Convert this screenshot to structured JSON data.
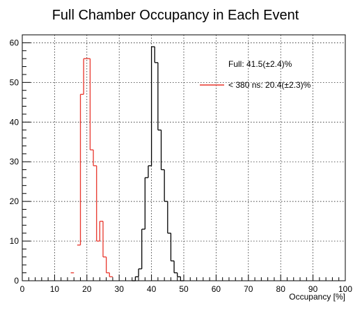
{
  "chart_data": {
    "type": "histogram",
    "title": "Full Chamber Occupancy in Each Event",
    "xlabel": "Occupancy [%]",
    "ylabel": "",
    "xlim": [
      0,
      100
    ],
    "ylim": [
      0,
      62
    ],
    "x_ticks": [
      "0",
      "10",
      "20",
      "30",
      "40",
      "50",
      "60",
      "70",
      "80",
      "90",
      "100"
    ],
    "y_ticks": [
      "0",
      "10",
      "20",
      "30",
      "40",
      "50",
      "60"
    ],
    "grid": true,
    "legend_position": "top-right",
    "series": [
      {
        "name": "Full: 41.5(±2.4)%",
        "color": "#000000",
        "legend_marker": false,
        "bin_width": 1,
        "bins": [
          {
            "x": 34,
            "y": 0
          },
          {
            "x": 35,
            "y": 1
          },
          {
            "x": 36,
            "y": 3
          },
          {
            "x": 37,
            "y": 13
          },
          {
            "x": 38,
            "y": 26
          },
          {
            "x": 39,
            "y": 29
          },
          {
            "x": 40,
            "y": 59
          },
          {
            "x": 41,
            "y": 55
          },
          {
            "x": 42,
            "y": 38
          },
          {
            "x": 43,
            "y": 28
          },
          {
            "x": 44,
            "y": 20
          },
          {
            "x": 45,
            "y": 12
          },
          {
            "x": 46,
            "y": 5
          },
          {
            "x": 47,
            "y": 2
          },
          {
            "x": 48,
            "y": 1
          },
          {
            "x": 49,
            "y": 0
          }
        ]
      },
      {
        "name": "< 380 ns: 20.4(±2.3)%",
        "color": "#e8352b",
        "legend_marker": true,
        "bin_width": 1,
        "bins": [
          {
            "x": 15,
            "y": 2
          },
          {
            "x": 17,
            "y": 9
          },
          {
            "x": 18,
            "y": 47
          },
          {
            "x": 19,
            "y": 56
          },
          {
            "x": 20,
            "y": 56
          },
          {
            "x": 21,
            "y": 33
          },
          {
            "x": 22,
            "y": 29
          },
          {
            "x": 23,
            "y": 10
          },
          {
            "x": 24,
            "y": 15
          },
          {
            "x": 25,
            "y": 6
          },
          {
            "x": 26,
            "y": 2
          },
          {
            "x": 27,
            "y": 1
          }
        ]
      }
    ]
  }
}
